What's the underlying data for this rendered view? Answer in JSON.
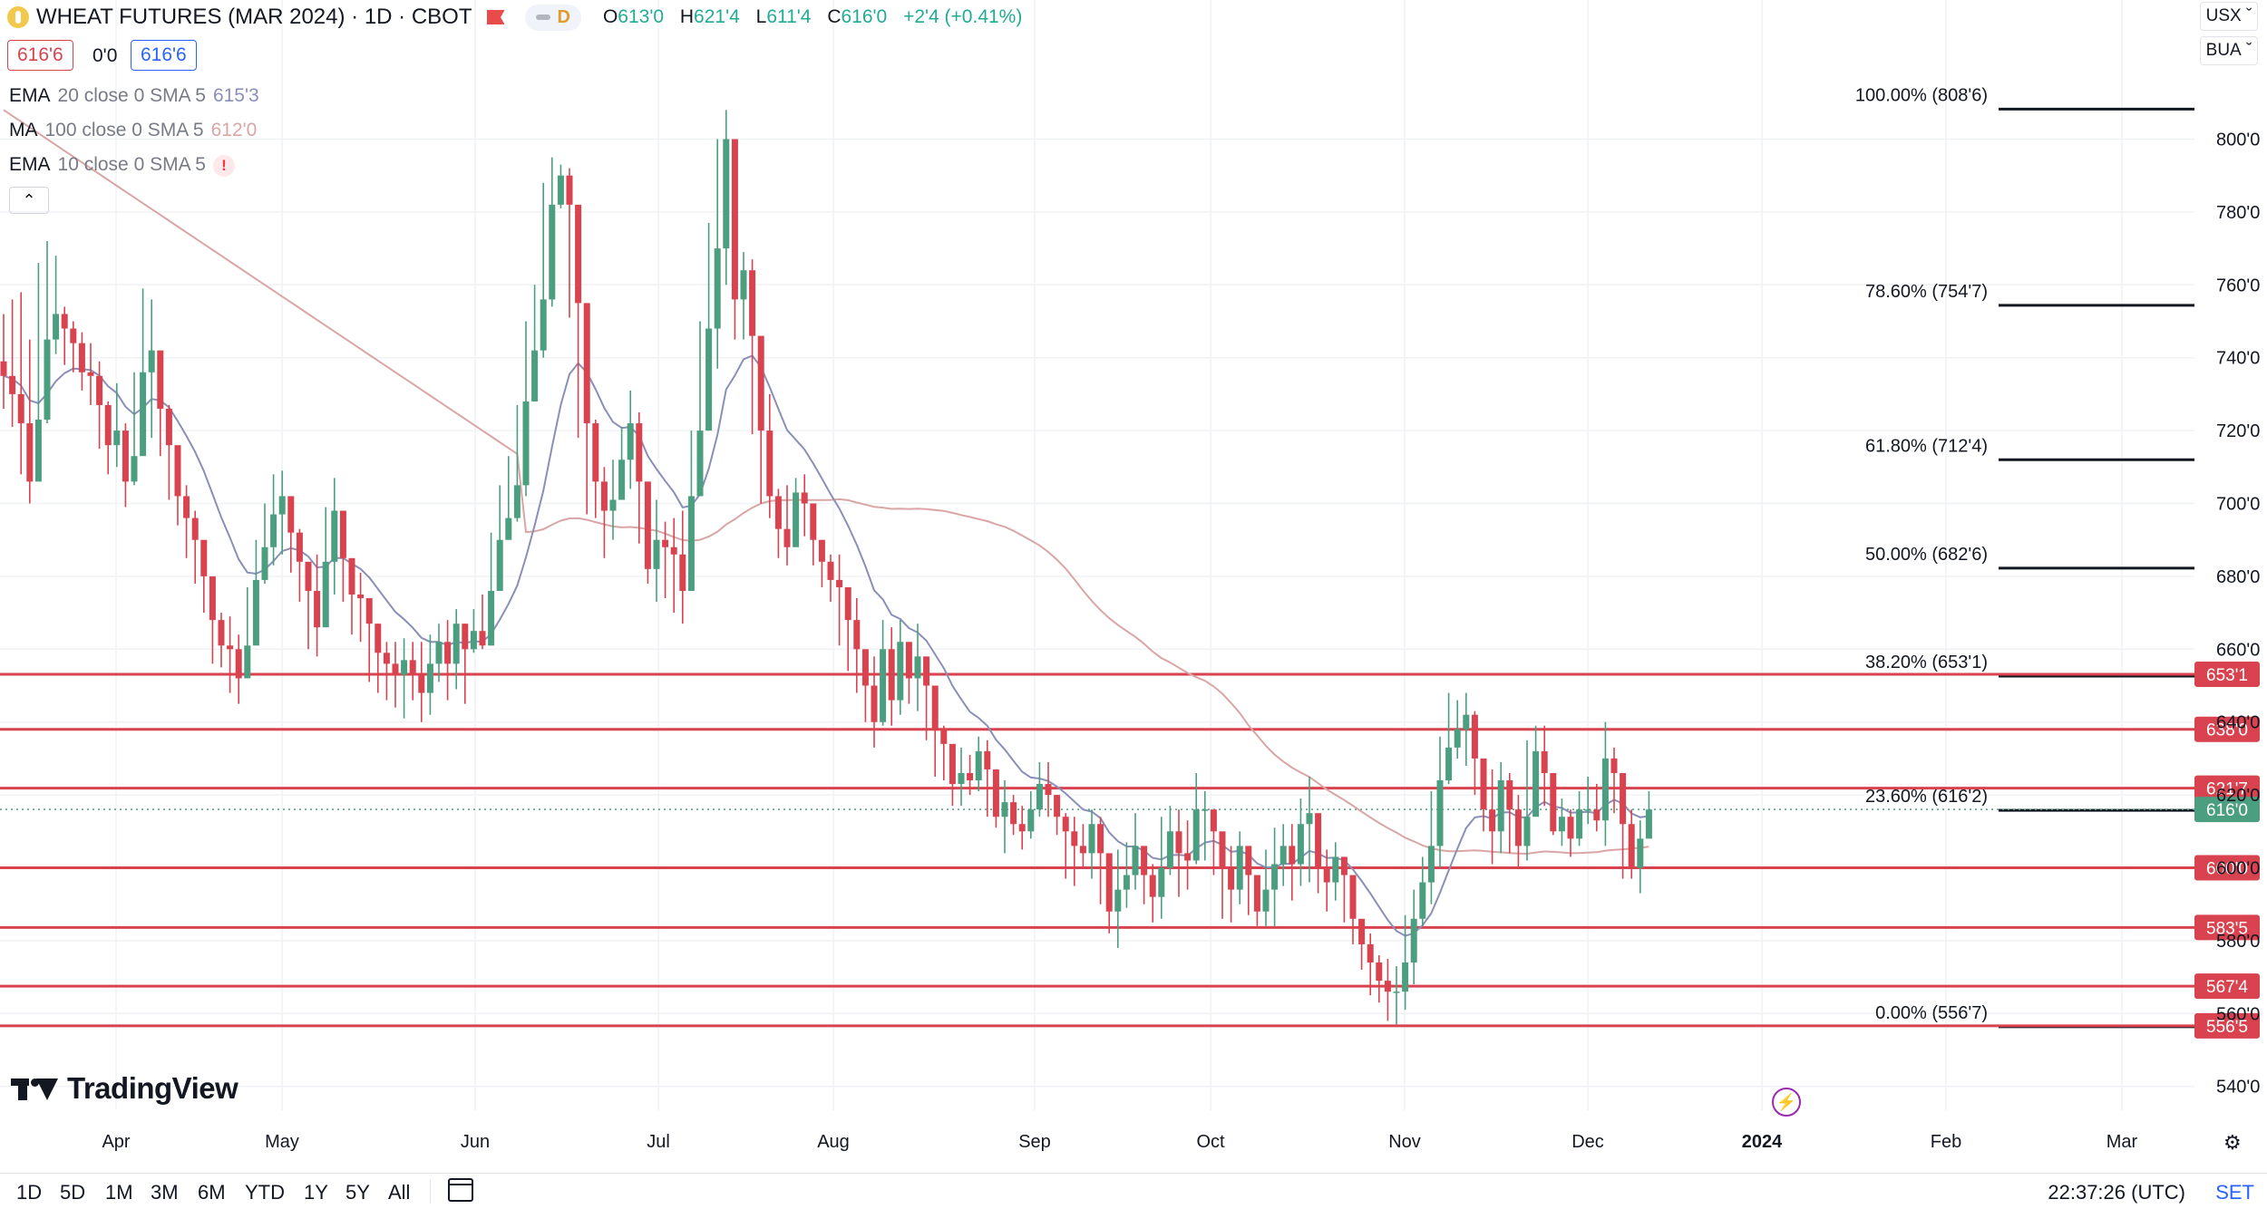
{
  "header": {
    "title": "WHEAT FUTURES (MAR 2024) · 1D · CBOT",
    "pill_label": "D",
    "ohlc": {
      "o_label": "O",
      "o": "613'0",
      "h_label": "H",
      "h": "621'4",
      "l_label": "L",
      "l": "611'4",
      "c_label": "C",
      "c": "616'0",
      "change": "+2'4 (+0.41%)"
    },
    "bid": "616'6",
    "spread": "0'0",
    "ask": "616'6"
  },
  "indicators": [
    {
      "name": "EMA",
      "params": "20 close 0 SMA 5",
      "value": "615'3",
      "color": "#8a8fb8"
    },
    {
      "name": "MA",
      "params": "100 close 0 SMA 5",
      "value": "612'0",
      "color": "#d9a5a5"
    },
    {
      "name": "EMA",
      "params": "10 close 0 SMA 5",
      "value": "!",
      "color": "#f23645"
    }
  ],
  "units": {
    "currency": "USX",
    "unit": "BUA"
  },
  "colors": {
    "up": "#4b9e7f",
    "down": "#d9434f",
    "level": "#d9434f",
    "ema20": "#8a8fb8",
    "ma100": "#d9a5a5"
  },
  "bottom": {
    "ranges": [
      "1D",
      "5D",
      "1M",
      "3M",
      "6M",
      "YTD",
      "1Y",
      "5Y",
      "All"
    ],
    "clock": "22:37:26 (UTC)",
    "set": "SET"
  },
  "branding": "TradingView",
  "chart_data": {
    "type": "candlestick",
    "x_ticks": [
      "Apr",
      "May",
      "Jun",
      "Jul",
      "Aug",
      "Sep",
      "Oct",
      "Nov",
      "Dec",
      "2024",
      "Feb",
      "Mar"
    ],
    "y_ticks": [
      "800'0",
      "780'0",
      "760'0",
      "740'0",
      "720'0",
      "700'0",
      "680'0",
      "660'0",
      "640'0",
      "620'0",
      "600'0",
      "580'0",
      "560'0",
      "540'0"
    ],
    "ylim": [
      532,
      820
    ],
    "grid": true,
    "fibonacci": [
      {
        "label": "100.00% (808'6)",
        "price": 808.75
      },
      {
        "label": "78.60% (754'7)",
        "price": 754.875
      },
      {
        "label": "61.80% (712'4)",
        "price": 712.5
      },
      {
        "label": "50.00% (682'6)",
        "price": 682.75
      },
      {
        "label": "38.20% (653'1)",
        "price": 653.125
      },
      {
        "label": "23.60% (616'2)",
        "price": 616.25
      },
      {
        "label": "0.00% (556'7)",
        "price": 556.875
      }
    ],
    "levels": [
      {
        "label": "653'1",
        "price": 653.125
      },
      {
        "label": "638'0",
        "price": 638
      },
      {
        "label": "621'7",
        "price": 621.875
      },
      {
        "label": "600'0",
        "price": 600
      },
      {
        "label": "583'5",
        "price": 583.625
      },
      {
        "label": "567'4",
        "price": 567.5
      },
      {
        "label": "556'5",
        "price": 556.625
      }
    ],
    "last_price": {
      "label": "616'0",
      "price": 616
    },
    "closes": [
      735,
      730,
      722,
      706,
      723,
      745,
      752,
      748,
      744,
      736,
      735,
      727,
      716,
      720,
      706,
      713,
      736,
      742,
      726,
      716,
      702,
      696,
      690,
      680,
      668,
      661,
      660,
      652,
      661,
      679,
      688,
      697,
      702,
      692,
      684,
      676,
      666,
      684,
      698,
      685,
      675,
      674,
      667,
      659,
      656,
      653,
      657,
      653,
      648,
      656,
      662,
      656,
      667,
      660,
      665,
      661,
      676,
      690,
      696,
      705,
      728,
      742,
      756,
      782,
      790,
      782,
      755,
      722,
      706,
      698,
      701,
      712,
      722,
      706,
      682,
      690,
      688,
      686,
      676,
      702,
      720,
      748,
      770,
      800,
      756,
      764,
      746,
      720,
      702,
      693,
      688,
      703,
      700,
      690,
      684,
      679,
      677,
      668,
      660,
      650,
      640,
      660,
      646,
      662,
      652,
      658,
      650,
      638,
      634,
      623,
      626,
      624,
      632,
      627,
      614,
      618,
      612,
      610,
      616,
      623,
      620,
      614,
      610,
      606,
      604,
      612,
      604,
      588,
      594,
      598,
      606,
      598,
      592,
      600,
      610,
      604,
      602,
      616,
      616,
      610,
      600,
      594,
      606,
      598,
      588,
      594,
      601,
      606,
      601,
      612,
      615,
      600,
      596,
      603,
      598,
      586,
      579,
      574,
      569,
      566,
      566,
      574,
      586,
      596,
      606,
      624,
      633,
      638,
      642,
      630,
      616,
      610,
      624,
      616,
      606,
      614,
      632,
      626,
      610,
      614,
      608,
      616,
      616,
      613,
      630,
      626,
      612,
      600,
      608,
      616
    ],
    "highs": [
      752,
      756,
      758,
      745,
      766,
      772,
      768,
      754,
      750,
      747,
      744,
      739,
      728,
      733,
      722,
      736,
      759,
      756,
      739,
      727,
      712,
      705,
      698,
      688,
      677,
      670,
      669,
      664,
      677,
      690,
      700,
      708,
      709,
      701,
      693,
      682,
      686,
      699,
      707,
      693,
      683,
      681,
      674,
      667,
      662,
      662,
      663,
      662,
      662,
      664,
      667,
      668,
      671,
      667,
      671,
      675,
      692,
      705,
      713,
      727,
      750,
      760,
      788,
      795,
      793,
      792,
      776,
      752,
      723,
      710,
      712,
      721,
      731,
      725,
      700,
      701,
      695,
      696,
      698,
      720,
      750,
      777,
      800,
      808,
      795,
      769,
      767,
      736,
      730,
      704,
      705,
      707,
      708,
      697,
      690,
      686,
      686,
      674,
      674,
      659,
      658,
      668,
      666,
      668,
      661,
      667,
      658,
      647,
      639,
      632,
      633,
      631,
      636,
      635,
      623,
      624,
      620,
      617,
      621,
      629,
      629,
      620,
      615,
      614,
      612,
      616,
      614,
      598,
      605,
      607,
      615,
      604,
      601,
      614,
      617,
      616,
      613,
      626,
      621,
      615,
      607,
      606,
      610,
      604,
      593,
      605,
      611,
      612,
      612,
      619,
      625,
      604,
      605,
      607,
      603,
      593,
      585,
      582,
      576,
      575,
      573,
      587,
      594,
      603,
      621,
      636,
      648,
      646,
      648,
      643,
      626,
      627,
      629,
      626,
      620,
      635,
      639,
      639,
      620,
      619,
      616,
      621,
      625,
      623,
      640,
      633,
      621,
      616,
      613,
      621
    ],
    "lows": [
      726,
      721,
      708,
      700,
      713,
      722,
      741,
      738,
      736,
      731,
      727,
      715,
      708,
      710,
      699,
      705,
      719,
      718,
      713,
      701,
      694,
      685,
      678,
      670,
      656,
      655,
      648,
      645,
      654,
      663,
      678,
      683,
      686,
      681,
      673,
      660,
      658,
      673,
      675,
      673,
      664,
      662,
      651,
      648,
      646,
      644,
      641,
      646,
      640,
      642,
      651,
      646,
      649,
      645,
      659,
      660,
      661,
      682,
      691,
      695,
      702,
      728,
      740,
      754,
      781,
      751,
      718,
      697,
      696,
      685,
      690,
      702,
      704,
      689,
      678,
      673,
      674,
      670,
      667,
      698,
      702,
      720,
      737,
      760,
      745,
      745,
      719,
      700,
      696,
      685,
      683,
      692,
      691,
      683,
      677,
      673,
      661,
      654,
      648,
      640,
      633,
      639,
      639,
      642,
      645,
      643,
      635,
      625,
      624,
      617,
      617,
      620,
      621,
      614,
      611,
      604,
      609,
      605,
      608,
      614,
      614,
      609,
      597,
      595,
      600,
      597,
      590,
      582,
      578,
      589,
      594,
      590,
      585,
      586,
      598,
      592,
      594,
      601,
      602,
      598,
      586,
      585,
      590,
      587,
      584,
      584,
      584,
      595,
      591,
      595,
      596,
      593,
      588,
      591,
      585,
      579,
      572,
      565,
      563,
      558,
      557,
      561,
      568,
      584,
      590,
      600,
      623,
      630,
      628,
      620,
      610,
      601,
      604,
      604,
      600,
      602,
      617,
      617,
      609,
      606,
      603,
      606,
      612,
      610,
      606,
      615,
      597,
      597,
      593,
      612
    ]
  }
}
